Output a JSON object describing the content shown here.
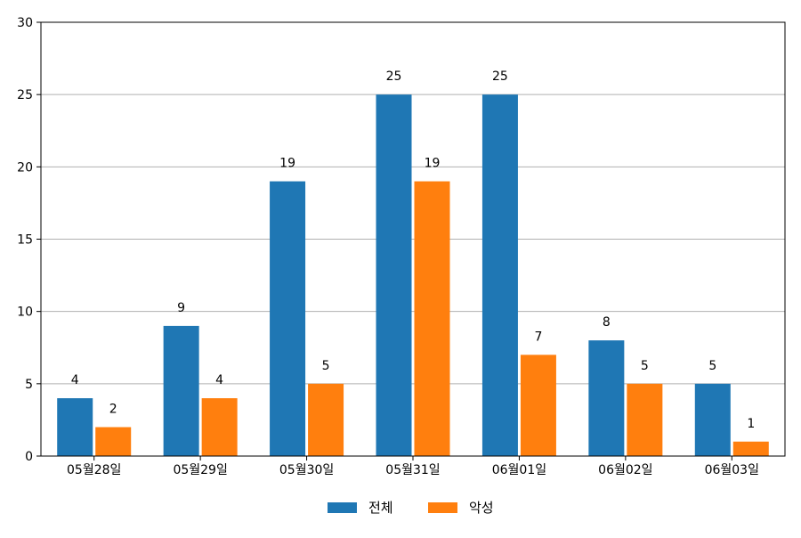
{
  "chart_data": {
    "type": "bar",
    "categories": [
      "05월28일",
      "05월29일",
      "05월30일",
      "05월31일",
      "06월01일",
      "06월02일",
      "06월03일"
    ],
    "series": [
      {
        "name": "전체",
        "values": [
          4,
          9,
          19,
          25,
          25,
          8,
          5
        ],
        "color": "#1f77b4"
      },
      {
        "name": "악성",
        "values": [
          2,
          4,
          5,
          19,
          7,
          5,
          1
        ],
        "color": "#ff7f0e"
      }
    ],
    "title": "",
    "xlabel": "",
    "ylabel": "",
    "ylim": [
      0,
      30
    ],
    "yticks": [
      0,
      5,
      10,
      15,
      20,
      25,
      30
    ],
    "grid": "horizontal",
    "legend_position": "bottom-center",
    "data_labels": true,
    "gridline_color": "#b0b0b0"
  }
}
